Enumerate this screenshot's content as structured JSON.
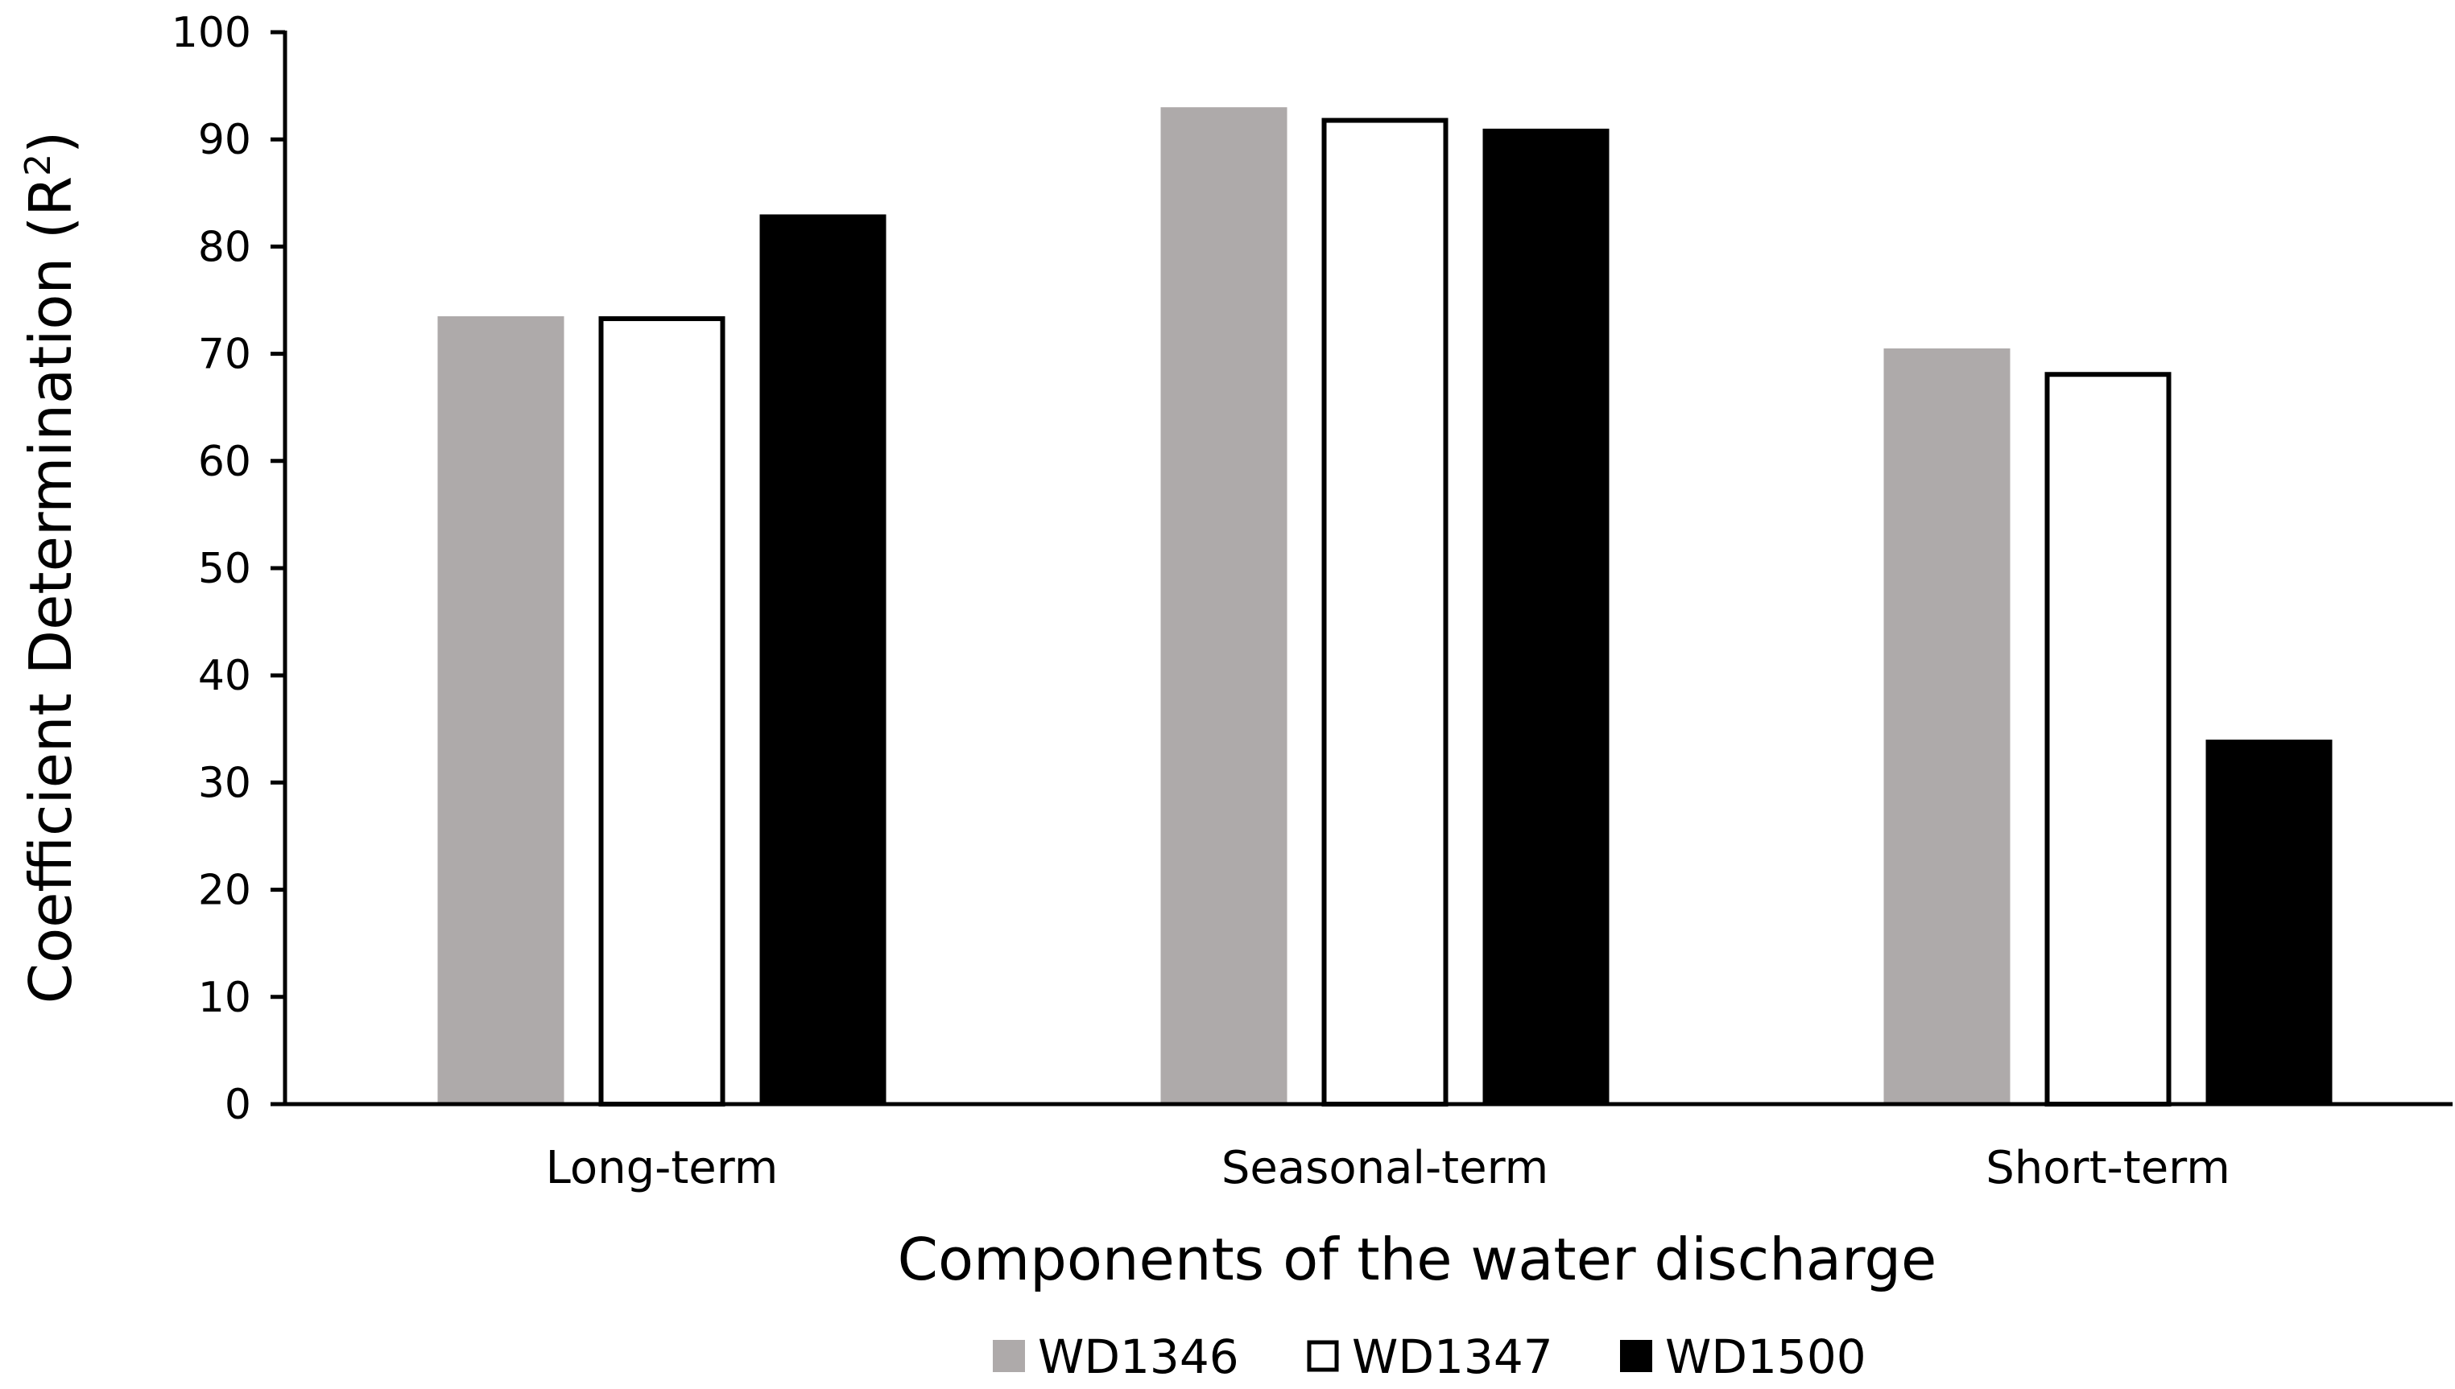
{
  "chart_data": {
    "type": "bar",
    "title": "",
    "categories": [
      "Long-term",
      "Seasonal-term",
      "Short-term"
    ],
    "series": [
      {
        "name": "WD1346",
        "values": [
          73.5,
          93.0,
          70.5
        ],
        "fill": "#aeaaaa",
        "stroke": "#aeaaaa"
      },
      {
        "name": "WD1347",
        "values": [
          73.5,
          92.0,
          68.3
        ],
        "fill": "#ffffff",
        "stroke": "#000000"
      },
      {
        "name": "WD1500",
        "values": [
          83.0,
          91.0,
          34.0
        ],
        "fill": "#000000",
        "stroke": "#000000"
      }
    ],
    "xlabel": "Components of the water discharge",
    "ylabel_main": "Coefficient Determination (R",
    "ylabel_sup": "2",
    "ylabel_end": ")",
    "ylim": [
      0,
      100
    ],
    "yticks": [
      "0",
      "10",
      "20",
      "30",
      "40",
      "50",
      "60",
      "70",
      "80",
      "90",
      "100"
    ],
    "grid": false,
    "legend_position": "bottom-center"
  }
}
